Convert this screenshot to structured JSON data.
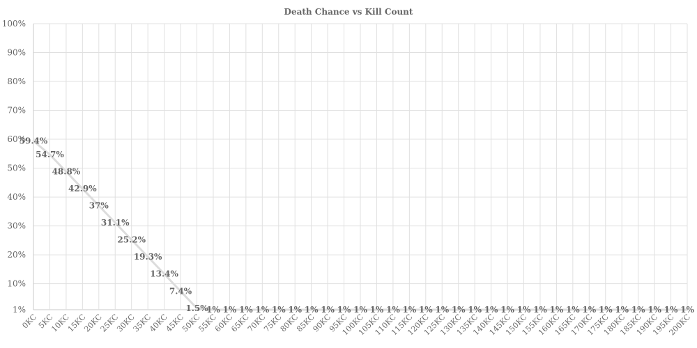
{
  "chart_data": {
    "type": "line",
    "title": "Death Chance vs Kill Count",
    "xlabel": "",
    "ylabel": "",
    "categories": [
      "0KC",
      "5KC",
      "10KC",
      "15KC",
      "20KC",
      "25KC",
      "30KC",
      "35KC",
      "40KC",
      "45KC",
      "50KC",
      "55KC",
      "60KC",
      "65KC",
      "70KC",
      "75KC",
      "80KC",
      "85KC",
      "90KC",
      "95KC",
      "100KC",
      "105KC",
      "110KC",
      "115KC",
      "120KC",
      "125KC",
      "130KC",
      "135KC",
      "140KC",
      "145KC",
      "150KC",
      "155KC",
      "160KC",
      "165KC",
      "170KC",
      "175KC",
      "180KC",
      "185KC",
      "190KC",
      "195KC",
      "200KC"
    ],
    "y_ticks": [
      "1%",
      "10%",
      "20%",
      "30%",
      "40%",
      "50%",
      "60%",
      "70%",
      "80%",
      "90%",
      "100%"
    ],
    "y_tick_values": [
      1,
      10,
      20,
      30,
      40,
      50,
      60,
      70,
      80,
      90,
      100
    ],
    "ylim": [
      1,
      100
    ],
    "grid": true,
    "legend": "none",
    "series": [
      {
        "values": [
          59.4,
          54.7,
          48.8,
          42.9,
          37,
          31.1,
          25.2,
          19.3,
          13.4,
          7.4,
          1.5,
          1,
          1,
          1,
          1,
          1,
          1,
          1,
          1,
          1,
          1,
          1,
          1,
          1,
          1,
          1,
          1,
          1,
          1,
          1,
          1,
          1,
          1,
          1,
          1,
          1,
          1,
          1,
          1,
          1,
          1
        ],
        "labels": [
          "59.4%",
          "54.7%",
          "48.8%",
          "42.9%",
          "37%",
          "31.1%",
          "25.2%",
          "19.3%",
          "13.4%",
          "7.4%",
          "1.5%",
          "1%",
          "1%",
          "1%",
          "1%",
          "1%",
          "1%",
          "1%",
          "1%",
          "1%",
          "1%",
          "1%",
          "1%",
          "1%",
          "1%",
          "1%",
          "1%",
          "1%",
          "1%",
          "1%",
          "1%",
          "1%",
          "1%",
          "1%",
          "1%",
          "1%",
          "1%",
          "1%",
          "1%",
          "1%",
          "1%"
        ],
        "color": "#dcdcdc"
      }
    ],
    "colors": {
      "text": "#666666",
      "grid": "#e0e0e0",
      "line": "#dcdcdc"
    }
  }
}
